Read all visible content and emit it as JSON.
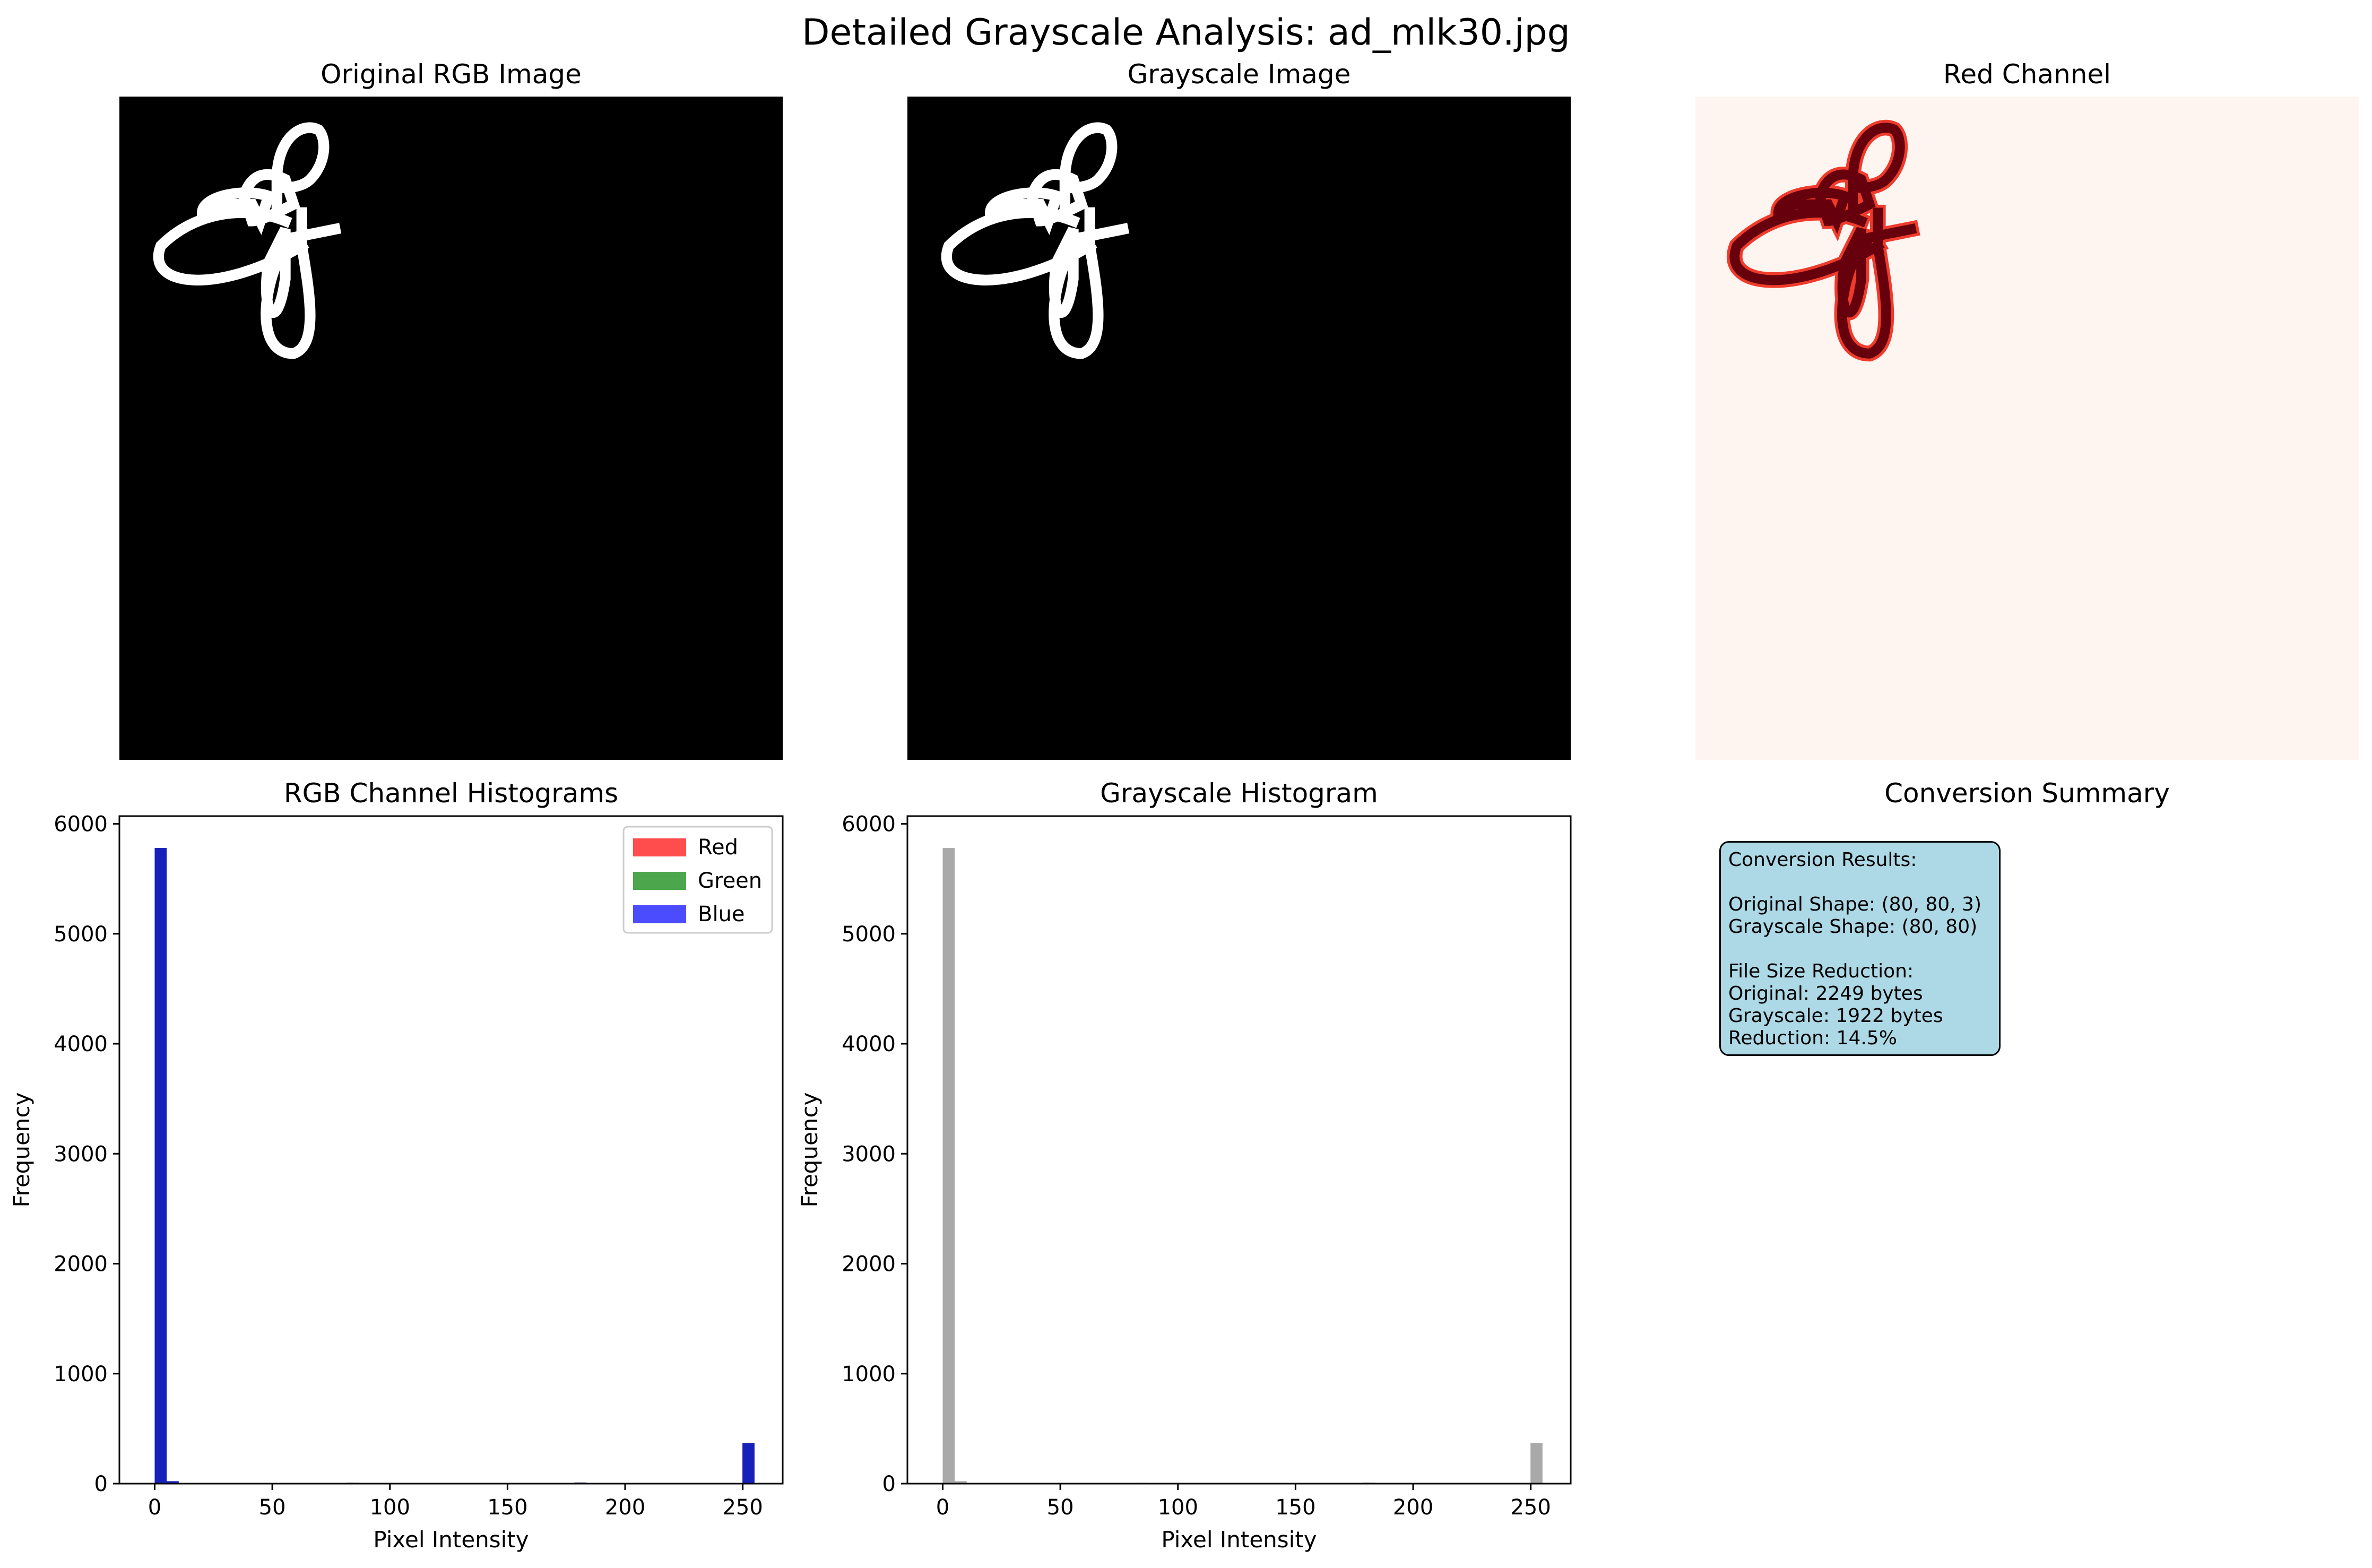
{
  "suptitle": "Detailed Grayscale Analysis: ad_mlk30.jpg",
  "panels": {
    "original": {
      "title": "Original RGB Image"
    },
    "grayscale": {
      "title": "Grayscale Image"
    },
    "red": {
      "title": "Red Channel"
    },
    "rgb_hist": {
      "title": "RGB Channel Histograms"
    },
    "gray_hist": {
      "title": "Grayscale Histogram"
    },
    "summary": {
      "title": "Conversion Summary",
      "text": "Conversion Results:\n\nOriginal Shape: (80, 80, 3)\nGrayscale Shape: (80, 80)\n\nFile Size Reduction:\nOriginal: 2249 bytes\nGrayscale: 1922 bytes\nReduction: 14.5%"
    }
  },
  "colors": {
    "red": "#ff0000",
    "green": "#008000",
    "blue": "#0000ff",
    "gray": "#a9a9a9",
    "summary_bg": "#add8e6",
    "reds_dark": "#67000d",
    "reds_mid": "#ef3b2c",
    "reds_light": "#fff5f0"
  },
  "chart_data": [
    {
      "type": "bar",
      "title": "RGB Channel Histograms",
      "xlabel": "Pixel Intensity",
      "ylabel": "Frequency",
      "xlim": [
        -15,
        267
      ],
      "ylim": [
        0,
        6070
      ],
      "xticks": [
        0,
        50,
        100,
        150,
        200,
        250
      ],
      "yticks": [
        0,
        1000,
        2000,
        3000,
        4000,
        5000,
        6000
      ],
      "legend": {
        "placement": "top-right",
        "entries": [
          "Red",
          "Green",
          "Blue"
        ]
      },
      "bin_width": 5.1,
      "series": [
        {
          "name": "Red",
          "color": "#ff0000",
          "x": [
            0,
            5.1,
            30.6,
            40.8,
            81.6,
            132.6,
            178.5,
            249.9
          ],
          "values": [
            5780,
            22,
            6,
            6,
            8,
            6,
            10,
            370
          ]
        },
        {
          "name": "Green",
          "color": "#008000",
          "x": [
            0,
            5.1,
            30.6,
            40.8,
            81.6,
            132.6,
            178.5,
            249.9
          ],
          "values": [
            5780,
            22,
            6,
            6,
            8,
            6,
            10,
            370
          ]
        },
        {
          "name": "Blue",
          "color": "#0000ff",
          "x": [
            0,
            5.1,
            30.6,
            40.8,
            81.6,
            132.6,
            178.5,
            249.9
          ],
          "values": [
            5780,
            22,
            6,
            6,
            8,
            6,
            10,
            370
          ]
        }
      ]
    },
    {
      "type": "bar",
      "title": "Grayscale Histogram",
      "xlabel": "Pixel Intensity",
      "ylabel": "Frequency",
      "xlim": [
        -15,
        267
      ],
      "ylim": [
        0,
        6070
      ],
      "xticks": [
        0,
        50,
        100,
        150,
        200,
        250
      ],
      "yticks": [
        0,
        1000,
        2000,
        3000,
        4000,
        5000,
        6000
      ],
      "bin_width": 5.1,
      "series": [
        {
          "color": "#a9a9a9",
          "x": [
            0,
            5.1,
            30.6,
            40.8,
            81.6,
            132.6,
            178.5,
            249.9
          ],
          "values": [
            5780,
            22,
            6,
            6,
            8,
            6,
            10,
            370
          ]
        }
      ]
    }
  ]
}
